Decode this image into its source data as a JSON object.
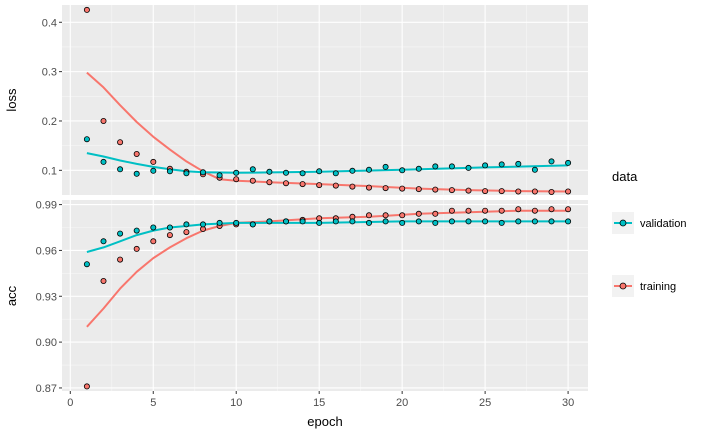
{
  "chart_data": {
    "type": "line",
    "xlabel": "epoch",
    "x_ticks": [
      0,
      5,
      10,
      15,
      20,
      25,
      30
    ],
    "xlim": [
      -0.5,
      31.2
    ],
    "legend_placement": "right",
    "legend": {
      "title": "data",
      "entries": [
        {
          "name": "training",
          "color": "#F8766D"
        },
        {
          "name": "validation",
          "color": "#00BFC4"
        }
      ]
    },
    "panels": [
      {
        "name": "loss",
        "ylabel": "loss",
        "ylim": [
          0.05,
          0.435
        ],
        "y_ticks": [
          0.1,
          0.2,
          0.3,
          0.4
        ],
        "y_tick_labels": [
          "0.1",
          "0.2",
          "0.3",
          "0.4"
        ],
        "series": [
          {
            "name": "training",
            "points": [
              [
                1,
                0.425
              ],
              [
                2,
                0.2
              ],
              [
                3,
                0.157
              ],
              [
                4,
                0.133
              ],
              [
                5,
                0.117
              ],
              [
                6,
                0.103
              ],
              [
                7,
                0.097
              ],
              [
                8,
                0.092
              ],
              [
                9,
                0.085
              ],
              [
                10,
                0.082
              ],
              [
                11,
                0.079
              ],
              [
                12,
                0.076
              ],
              [
                13,
                0.074
              ],
              [
                14,
                0.072
              ],
              [
                15,
                0.07
              ],
              [
                16,
                0.069
              ],
              [
                17,
                0.067
              ],
              [
                18,
                0.065
              ],
              [
                19,
                0.064
              ],
              [
                20,
                0.063
              ],
              [
                21,
                0.062
              ],
              [
                22,
                0.061
              ],
              [
                23,
                0.06
              ],
              [
                24,
                0.059
              ],
              [
                25,
                0.058
              ],
              [
                26,
                0.058
              ],
              [
                27,
                0.057
              ],
              [
                28,
                0.057
              ],
              [
                29,
                0.056
              ],
              [
                30,
                0.057
              ]
            ],
            "smooth": [
              [
                1,
                0.298
              ],
              [
                2,
                0.268
              ],
              [
                3,
                0.232
              ],
              [
                4,
                0.198
              ],
              [
                5,
                0.168
              ],
              [
                6,
                0.142
              ],
              [
                7,
                0.118
              ],
              [
                8,
                0.098
              ],
              [
                9,
                0.082
              ],
              [
                10,
                0.079
              ],
              [
                12,
                0.076
              ],
              [
                15,
                0.072
              ],
              [
                18,
                0.068
              ],
              [
                21,
                0.063
              ],
              [
                24,
                0.06
              ],
              [
                27,
                0.058
              ],
              [
                30,
                0.057
              ]
            ]
          },
          {
            "name": "validation",
            "points": [
              [
                1,
                0.163
              ],
              [
                2,
                0.117
              ],
              [
                3,
                0.102
              ],
              [
                4,
                0.093
              ],
              [
                5,
                0.099
              ],
              [
                6,
                0.098
              ],
              [
                7,
                0.094
              ],
              [
                8,
                0.096
              ],
              [
                9,
                0.09
              ],
              [
                10,
                0.095
              ],
              [
                11,
                0.102
              ],
              [
                12,
                0.097
              ],
              [
                13,
                0.095
              ],
              [
                14,
                0.094
              ],
              [
                15,
                0.098
              ],
              [
                16,
                0.094
              ],
              [
                17,
                0.099
              ],
              [
                18,
                0.101
              ],
              [
                19,
                0.107
              ],
              [
                20,
                0.1
              ],
              [
                21,
                0.103
              ],
              [
                22,
                0.108
              ],
              [
                23,
                0.108
              ],
              [
                24,
                0.105
              ],
              [
                25,
                0.11
              ],
              [
                26,
                0.112
              ],
              [
                27,
                0.113
              ],
              [
                28,
                0.101
              ],
              [
                29,
                0.118
              ],
              [
                30,
                0.115
              ]
            ],
            "smooth": [
              [
                1,
                0.135
              ],
              [
                2,
                0.128
              ],
              [
                3,
                0.12
              ],
              [
                4,
                0.113
              ],
              [
                5,
                0.107
              ],
              [
                6,
                0.102
              ],
              [
                7,
                0.098
              ],
              [
                8,
                0.096
              ],
              [
                10,
                0.095
              ],
              [
                15,
                0.097
              ],
              [
                20,
                0.101
              ],
              [
                25,
                0.106
              ],
              [
                30,
                0.11
              ]
            ]
          }
        ]
      },
      {
        "name": "acc",
        "ylabel": "acc",
        "ylim": [
          0.868,
          0.993
        ],
        "y_ticks": [
          0.87,
          0.9,
          0.93,
          0.96,
          0.99
        ],
        "y_tick_labels": [
          "0.87",
          "0.90",
          "0.93",
          "0.96",
          "0.99"
        ],
        "series": [
          {
            "name": "training",
            "points": [
              [
                1,
                0.871
              ],
              [
                2,
                0.94
              ],
              [
                3,
                0.954
              ],
              [
                4,
                0.961
              ],
              [
                5,
                0.966
              ],
              [
                6,
                0.97
              ],
              [
                7,
                0.972
              ],
              [
                8,
                0.974
              ],
              [
                9,
                0.976
              ],
              [
                10,
                0.977
              ],
              [
                11,
                0.977
              ],
              [
                12,
                0.979
              ],
              [
                13,
                0.979
              ],
              [
                14,
                0.98
              ],
              [
                15,
                0.981
              ],
              [
                16,
                0.981
              ],
              [
                17,
                0.982
              ],
              [
                18,
                0.983
              ],
              [
                19,
                0.983
              ],
              [
                20,
                0.983
              ],
              [
                21,
                0.984
              ],
              [
                22,
                0.984
              ],
              [
                23,
                0.986
              ],
              [
                24,
                0.986
              ],
              [
                25,
                0.986
              ],
              [
                26,
                0.986
              ],
              [
                27,
                0.987
              ],
              [
                28,
                0.986
              ],
              [
                29,
                0.987
              ],
              [
                30,
                0.987
              ]
            ],
            "smooth": [
              [
                1,
                0.91
              ],
              [
                2,
                0.922
              ],
              [
                3,
                0.935
              ],
              [
                4,
                0.946
              ],
              [
                5,
                0.955
              ],
              [
                6,
                0.962
              ],
              [
                7,
                0.968
              ],
              [
                8,
                0.973
              ],
              [
                9,
                0.976
              ],
              [
                10,
                0.978
              ],
              [
                12,
                0.979
              ],
              [
                15,
                0.981
              ],
              [
                18,
                0.982
              ],
              [
                21,
                0.984
              ],
              [
                24,
                0.985
              ],
              [
                27,
                0.986
              ],
              [
                30,
                0.986
              ]
            ]
          },
          {
            "name": "validation",
            "points": [
              [
                1,
                0.951
              ],
              [
                2,
                0.966
              ],
              [
                3,
                0.971
              ],
              [
                4,
                0.973
              ],
              [
                5,
                0.975
              ],
              [
                6,
                0.975
              ],
              [
                7,
                0.977
              ],
              [
                8,
                0.977
              ],
              [
                9,
                0.978
              ],
              [
                10,
                0.978
              ],
              [
                11,
                0.977
              ],
              [
                12,
                0.979
              ],
              [
                13,
                0.979
              ],
              [
                14,
                0.979
              ],
              [
                15,
                0.978
              ],
              [
                16,
                0.979
              ],
              [
                17,
                0.979
              ],
              [
                18,
                0.978
              ],
              [
                19,
                0.979
              ],
              [
                20,
                0.978
              ],
              [
                21,
                0.979
              ],
              [
                22,
                0.978
              ],
              [
                23,
                0.979
              ],
              [
                24,
                0.979
              ],
              [
                25,
                0.979
              ],
              [
                26,
                0.978
              ],
              [
                27,
                0.979
              ],
              [
                28,
                0.979
              ],
              [
                29,
                0.979
              ],
              [
                30,
                0.979
              ]
            ],
            "smooth": [
              [
                1,
                0.959
              ],
              [
                2,
                0.962
              ],
              [
                3,
                0.966
              ],
              [
                4,
                0.97
              ],
              [
                5,
                0.973
              ],
              [
                6,
                0.975
              ],
              [
                7,
                0.976
              ],
              [
                8,
                0.977
              ],
              [
                10,
                0.978
              ],
              [
                15,
                0.978
              ],
              [
                20,
                0.979
              ],
              [
                25,
                0.979
              ],
              [
                30,
                0.979
              ]
            ]
          }
        ]
      }
    ]
  }
}
